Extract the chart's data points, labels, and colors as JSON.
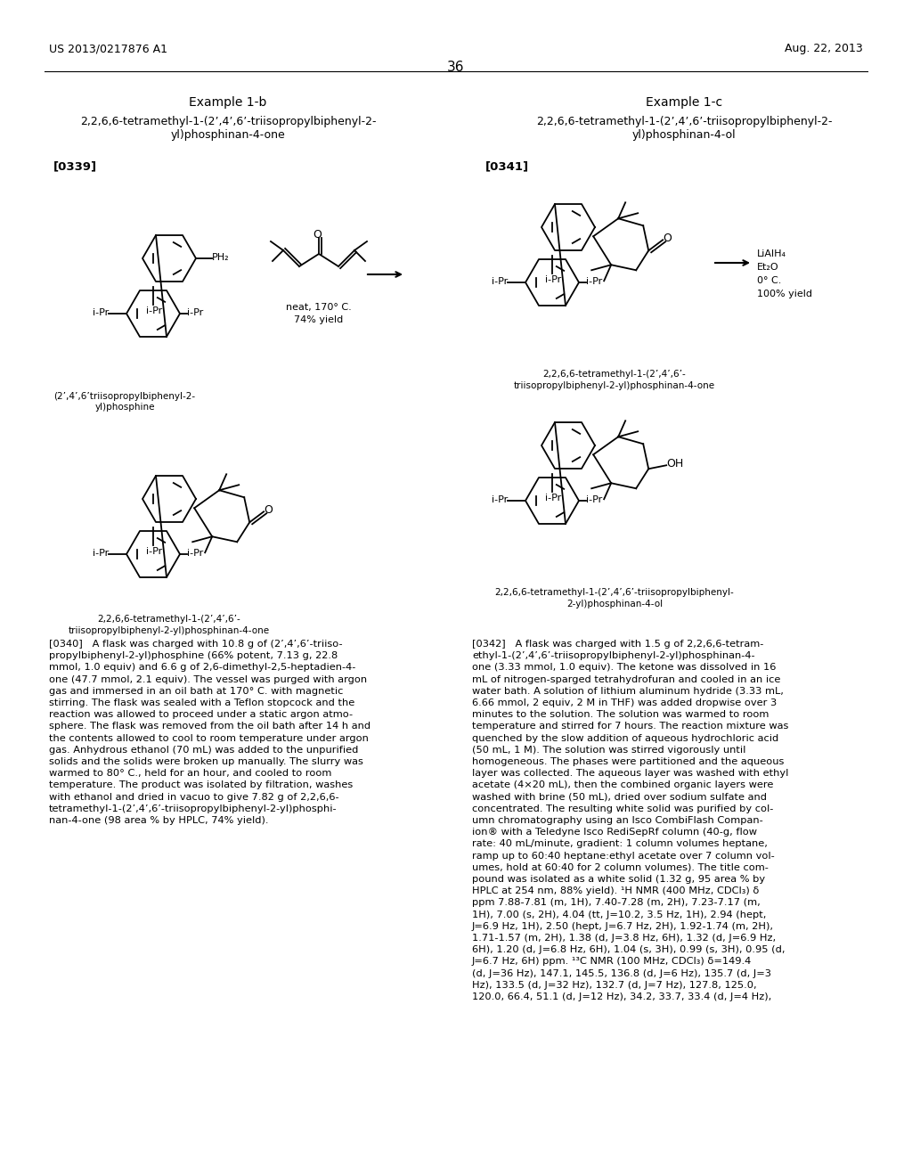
{
  "page_header_left": "US 2013/0217876 A1",
  "page_header_right": "Aug. 22, 2013",
  "page_number": "36",
  "background_color": "#ffffff",
  "text_color": "#000000",
  "example_1b_title": "Example 1-b",
  "example_1b_compound": "2,2,6,6-tetramethyl-1-(2’,4’,6’-triisopropylbiphenyl-2-\nyl)phosphinan-4-one",
  "example_1b_tag": "[0339]",
  "example_1c_title": "Example 1-c",
  "example_1c_compound": "2,2,6,6-tetramethyl-1-(2’,4’,6’-triisopropylbiphenyl-2-\nyl)phosphinan-4-ol",
  "example_1c_tag": "[0341]",
  "compound_label_1": "(2’,4’,6’triisopropylbiphenyl-2-\nyl)phosphine",
  "compound_label_2a": "2,2,6,6-tetramethyl-1-(2’,4’,6’-",
  "compound_label_2b": "triisopropylbiphenyl-2-yl)phosphinan-4-one",
  "compound_label_3a": "2,2,6,6-tetramethyl-1-(2’,4’,6’-triisopropylbiphenyl-",
  "compound_label_3b": "2-yl)phosphinan-4-ol",
  "paragraph_0340": "[0340]   A flask was charged with 10.8 g of (2’,4’,6’-triiso-\npropylbiphenyl-2-yl)phosphine (66% potent, 7.13 g, 22.8\nmmol, 1.0 equiv) and 6.6 g of 2,6-dimethyl-2,5-heptadien-4-\none (47.7 mmol, 2.1 equiv). The vessel was purged with argon\ngas and immersed in an oil bath at 170° C. with magnetic\nstirring. The flask was sealed with a Teflon stopcock and the\nreaction was allowed to proceed under a static argon atmo-\nsphere. The flask was removed from the oil bath after 14 h and\nthe contents allowed to cool to room temperature under argon\ngas. Anhydrous ethanol (70 mL) was added to the unpurified\nsolids and the solids were broken up manually. The slurry was\nwarmed to 80° C., held for an hour, and cooled to room\ntemperature. The product was isolated by filtration, washes\nwith ethanol and dried in vacuo to give 7.82 g of 2,2,6,6-\ntetramethyl-1-(2’,4’,6’-triisopropylbiphenyl-2-yl)phosphi-\nnan-4-one (98 area % by HPLC, 74% yield).",
  "paragraph_0342": "[0342]   A flask was charged with 1.5 g of 2,2,6,6-tetram-\nethyl-1-(2’,4’,6’-triisopropylbiphenyl-2-yl)phosphinan-4-\none (3.33 mmol, 1.0 equiv). The ketone was dissolved in 16\nmL of nitrogen-sparged tetrahydrofuran and cooled in an ice\nwater bath. A solution of lithium aluminum hydride (3.33 mL,\n6.66 mmol, 2 equiv, 2 M in THF) was added dropwise over 3\nminutes to the solution. The solution was warmed to room\ntemperature and stirred for 7 hours. The reaction mixture was\nquenched by the slow addition of aqueous hydrochloric acid\n(50 mL, 1 M). The solution was stirred vigorously until\nhomogeneous. The phases were partitioned and the aqueous\nlayer was collected. The aqueous layer was washed with ethyl\nacetate (4×20 mL), then the combined organic layers were\nwashed with brine (50 mL), dried over sodium sulfate and\nconcentrated. The resulting white solid was purified by col-\numn chromatography using an Isco CombiFlash Compan-\nion® with a Teledyne Isco RediSepRf column (40-g, flow\nrate: 40 mL/minute, gradient: 1 column volumes heptane,\nramp up to 60:40 heptane:ethyl acetate over 7 column vol-\numes, hold at 60:40 for 2 column volumes). The title com-\npound was isolated as a white solid (1.32 g, 95 area % by\nHPLC at 254 nm, 88% yield). ¹H NMR (400 MHz, CDCl₃) δ\nppm 7.88-7.81 (m, 1H), 7.40-7.28 (m, 2H), 7.23-7.17 (m,\n1H), 7.00 (s, 2H), 4.04 (tt, J=10.2, 3.5 Hz, 1H), 2.94 (hept,\nJ=6.9 Hz, 1H), 2.50 (hept, J=6.7 Hz, 2H), 1.92-1.74 (m, 2H),\n1.71-1.57 (m, 2H), 1.38 (d, J=3.8 Hz, 6H), 1.32 (d, J=6.9 Hz,\n6H), 1.20 (d, J=6.8 Hz, 6H), 1.04 (s, 3H), 0.99 (s, 3H), 0.95 (d,\nJ=6.7 Hz, 6H) ppm. ¹³C NMR (100 MHz, CDCl₃) δ=149.4\n(d, J=36 Hz), 147.1, 145.5, 136.8 (d, J=6 Hz), 135.7 (d, J=3\nHz), 133.5 (d, J=32 Hz), 132.7 (d, J=7 Hz), 127.8, 125.0,\n120.0, 66.4, 51.1 (d, J=12 Hz), 34.2, 33.7, 33.4 (d, J=4 Hz),"
}
